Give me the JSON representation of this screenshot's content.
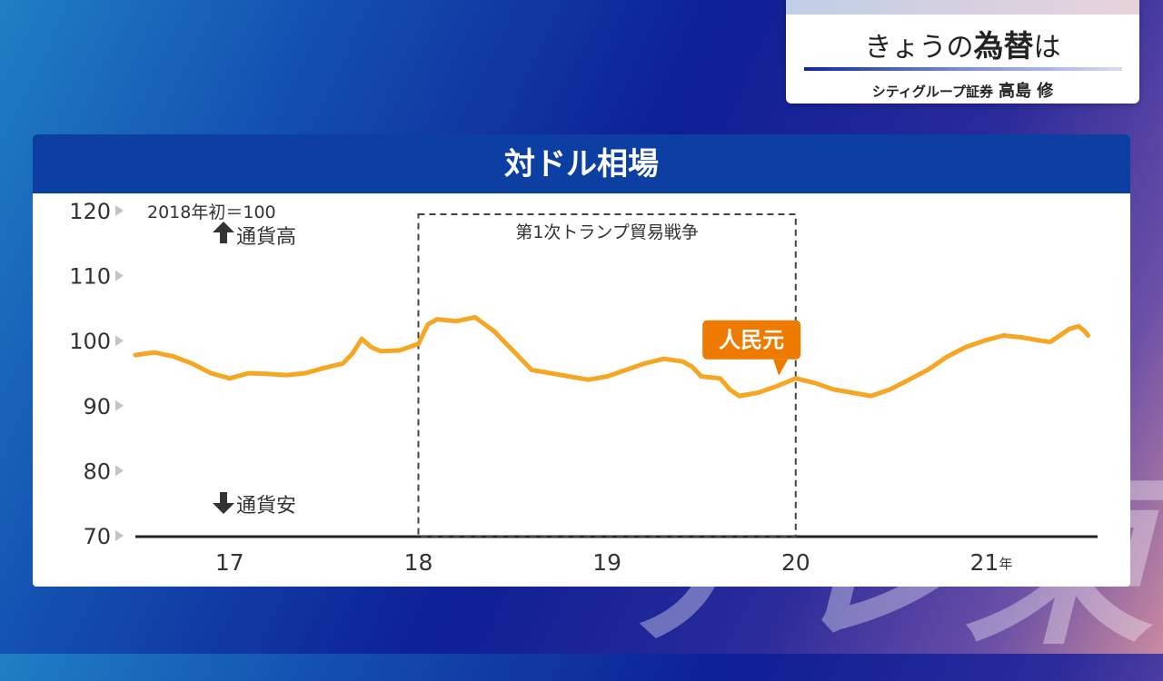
{
  "watermark": "テレ東",
  "header": {
    "title_prefix": "きょうの",
    "title_emph": "為替",
    "title_suffix": "は",
    "company": "シティグループ証券",
    "name": "高島 修"
  },
  "panel": {
    "title": "対ドル相場"
  },
  "chart_data": {
    "type": "line",
    "title": "対ドル相場",
    "note": "2018年初＝100",
    "up_label": "通貨高",
    "down_label": "通貨安",
    "ylim": [
      70,
      120
    ],
    "yticks": [
      {
        "v": 120,
        "label": "120"
      },
      {
        "v": 110,
        "label": "110"
      },
      {
        "v": 100,
        "label": "100"
      },
      {
        "v": 90,
        "label": "90"
      },
      {
        "v": 80,
        "label": "80"
      },
      {
        "v": 70,
        "label": "70"
      }
    ],
    "xlim": [
      2016.5,
      2021.6
    ],
    "xticks": [
      {
        "v": 2017,
        "label": "17"
      },
      {
        "v": 2018,
        "label": "18"
      },
      {
        "v": 2019,
        "label": "19"
      },
      {
        "v": 2020,
        "label": "20"
      },
      {
        "v": 2021,
        "label": "21"
      }
    ],
    "x_unit": "年",
    "annotation_region": {
      "x0": 2018.0,
      "x1": 2020.0,
      "label": "第1次トランプ貿易戦争"
    },
    "callout": {
      "label": "人民元",
      "x": 2019.92,
      "y": 93.5,
      "color": "#ee7a00"
    },
    "series": [
      {
        "name": "人民元",
        "color": "#f5a623",
        "points": [
          [
            2016.5,
            97.8
          ],
          [
            2016.6,
            98.2
          ],
          [
            2016.7,
            97.6
          ],
          [
            2016.8,
            96.5
          ],
          [
            2016.9,
            95.0
          ],
          [
            2017.0,
            94.2
          ],
          [
            2017.1,
            95.0
          ],
          [
            2017.2,
            94.9
          ],
          [
            2017.3,
            94.7
          ],
          [
            2017.4,
            95.0
          ],
          [
            2017.5,
            95.8
          ],
          [
            2017.6,
            96.5
          ],
          [
            2017.65,
            98.0
          ],
          [
            2017.7,
            100.3
          ],
          [
            2017.75,
            99.0
          ],
          [
            2017.8,
            98.4
          ],
          [
            2017.9,
            98.5
          ],
          [
            2018.0,
            99.5
          ],
          [
            2018.05,
            102.5
          ],
          [
            2018.1,
            103.3
          ],
          [
            2018.2,
            103.0
          ],
          [
            2018.3,
            103.6
          ],
          [
            2018.4,
            101.5
          ],
          [
            2018.45,
            100.0
          ],
          [
            2018.5,
            98.5
          ],
          [
            2018.55,
            97.0
          ],
          [
            2018.6,
            95.5
          ],
          [
            2018.7,
            95.0
          ],
          [
            2018.8,
            94.5
          ],
          [
            2018.9,
            94.0
          ],
          [
            2019.0,
            94.5
          ],
          [
            2019.1,
            95.5
          ],
          [
            2019.2,
            96.5
          ],
          [
            2019.3,
            97.2
          ],
          [
            2019.4,
            96.8
          ],
          [
            2019.45,
            96.0
          ],
          [
            2019.5,
            94.5
          ],
          [
            2019.6,
            94.2
          ],
          [
            2019.65,
            92.5
          ],
          [
            2019.7,
            91.5
          ],
          [
            2019.8,
            92.0
          ],
          [
            2019.9,
            93.0
          ],
          [
            2020.0,
            94.2
          ],
          [
            2020.1,
            93.5
          ],
          [
            2020.2,
            92.5
          ],
          [
            2020.3,
            92.0
          ],
          [
            2020.4,
            91.5
          ],
          [
            2020.5,
            92.5
          ],
          [
            2020.6,
            94.0
          ],
          [
            2020.7,
            95.5
          ],
          [
            2020.8,
            97.5
          ],
          [
            2020.9,
            99.0
          ],
          [
            2021.0,
            100.0
          ],
          [
            2021.1,
            100.8
          ],
          [
            2021.2,
            100.5
          ],
          [
            2021.3,
            100.0
          ],
          [
            2021.35,
            99.8
          ],
          [
            2021.4,
            100.8
          ],
          [
            2021.45,
            101.8
          ],
          [
            2021.5,
            102.2
          ],
          [
            2021.53,
            101.5
          ],
          [
            2021.55,
            100.8
          ]
        ]
      }
    ]
  }
}
